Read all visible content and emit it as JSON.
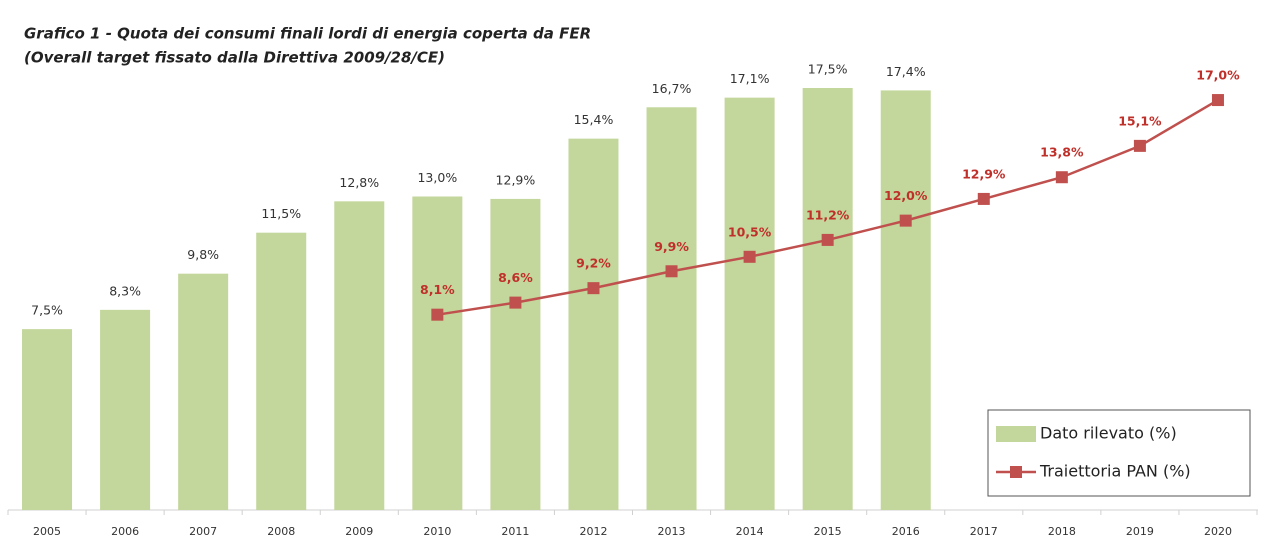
{
  "chart_data": {
    "type": "bar-line",
    "title": "Grafico 1 -  Quota dei consumi finali lordi di energia coperta da FER",
    "subtitle": "(Overall target fissato dalla Direttiva 2009/28/CE)",
    "categories": [
      "2005",
      "2006",
      "2007",
      "2008",
      "2009",
      "2010",
      "2011",
      "2012",
      "2013",
      "2014",
      "2015",
      "2016",
      "2017",
      "2018",
      "2019",
      "2020"
    ],
    "legend": "lower right",
    "series": [
      {
        "name": "Dato rilevato (%)",
        "type": "bar",
        "color": "#c3d69b",
        "values": [
          7.5,
          8.3,
          9.8,
          11.5,
          12.8,
          13.0,
          12.9,
          15.4,
          16.7,
          17.1,
          17.5,
          17.4,
          null,
          null,
          null,
          null
        ],
        "value_labels": [
          "7,5%",
          "8,3%",
          "9,8%",
          "11,5%",
          "12,8%",
          "13,0%",
          "12,9%",
          "15,4%",
          "16,7%",
          "17,1%",
          "17,5%",
          "17,4%",
          null,
          null,
          null,
          null
        ]
      },
      {
        "name": "Traiettoria PAN (%)",
        "type": "line",
        "color": "#c0504d",
        "values": [
          null,
          null,
          null,
          null,
          null,
          8.1,
          8.6,
          9.2,
          9.9,
          10.5,
          11.2,
          12.0,
          12.9,
          13.8,
          15.1,
          17.0
        ],
        "value_labels": [
          null,
          null,
          null,
          null,
          null,
          "8,1%",
          "8,6%",
          "9,2%",
          "9,9%",
          "10,5%",
          "11,2%",
          "12,0%",
          "12,9%",
          "13,8%",
          "15,1%",
          "17,0%"
        ]
      }
    ]
  }
}
